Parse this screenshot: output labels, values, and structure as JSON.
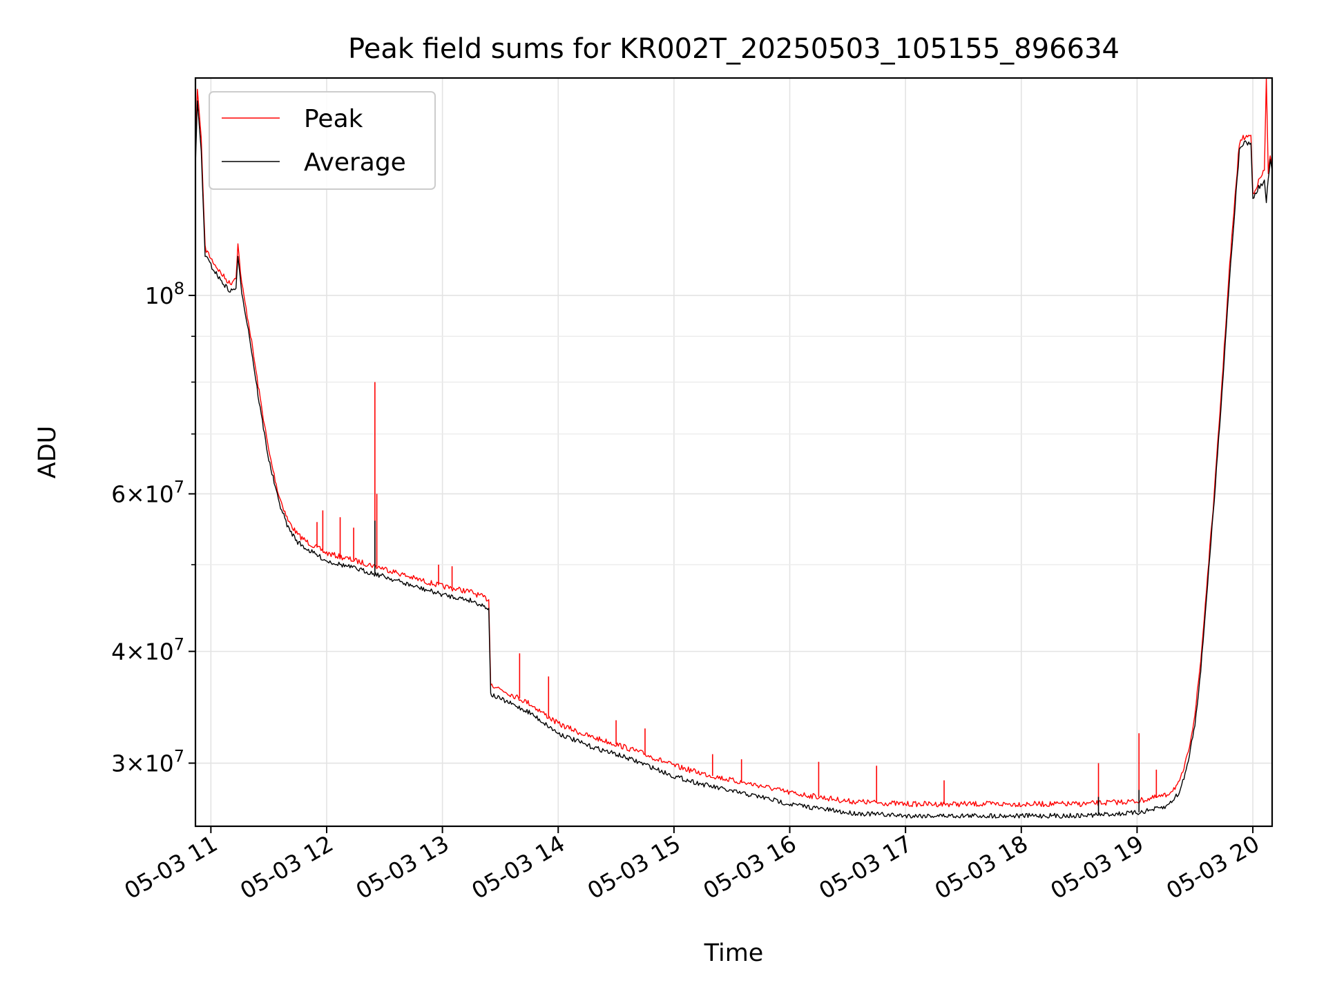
{
  "chart_data": {
    "type": "line",
    "title": "Peak field sums for KR002T_20250503_105155_896634",
    "xlabel": "Time",
    "ylabel": "ADU",
    "y_scale": "log",
    "ylim": [
      25500000,
      175000000
    ],
    "xlim": [
      "2025-05-03 10:52",
      "2025-05-03 20:10"
    ],
    "grid": true,
    "legend_position": "top-left",
    "x_tick_labels": [
      "05-03 11",
      "05-03 12",
      "05-03 13",
      "05-03 14",
      "05-03 15",
      "05-03 16",
      "05-03 17",
      "05-03 18",
      "05-03 19",
      "05-03 20"
    ],
    "x_ticks": [
      "2025-05-03 11:00",
      "2025-05-03 12:00",
      "2025-05-03 13:00",
      "2025-05-03 14:00",
      "2025-05-03 15:00",
      "2025-05-03 16:00",
      "2025-05-03 17:00",
      "2025-05-03 18:00",
      "2025-05-03 19:00",
      "2025-05-03 20:00"
    ],
    "y_major_tick_labels": [
      {
        "value": 100000000,
        "mantissa": "",
        "base": "10",
        "exp": "8"
      },
      {
        "value": 60000000,
        "mantissa": "6",
        "base": "10",
        "exp": "7"
      },
      {
        "value": 40000000,
        "mantissa": "4",
        "base": "10",
        "exp": "7"
      },
      {
        "value": 30000000,
        "mantissa": "3",
        "base": "10",
        "exp": "7"
      }
    ],
    "y_minor_ticks": [
      90000000,
      80000000,
      70000000,
      50000000
    ],
    "series": [
      {
        "name": "Peak",
        "color": "#ff0000",
        "points": [
          [
            "2025-05-03 10:52",
            145000000
          ],
          [
            "2025-05-03 10:53",
            170000000
          ],
          [
            "2025-05-03 10:55",
            150000000
          ],
          [
            "2025-05-03 10:57",
            113000000
          ],
          [
            "2025-05-03 11:00",
            110000000
          ],
          [
            "2025-05-03 11:05",
            106000000
          ],
          [
            "2025-05-03 11:10",
            103000000
          ],
          [
            "2025-05-03 11:13",
            105000000
          ],
          [
            "2025-05-03 11:14",
            114000000
          ],
          [
            "2025-05-03 11:16",
            103000000
          ],
          [
            "2025-05-03 11:20",
            92000000
          ],
          [
            "2025-05-03 11:25",
            78000000
          ],
          [
            "2025-05-03 11:30",
            67000000
          ],
          [
            "2025-05-03 11:35",
            60000000
          ],
          [
            "2025-05-03 11:40",
            56000000
          ],
          [
            "2025-05-03 11:45",
            54000000
          ],
          [
            "2025-05-03 11:50",
            53000000
          ],
          [
            "2025-05-03 12:00",
            51500000
          ],
          [
            "2025-05-03 12:15",
            50500000
          ],
          [
            "2025-05-03 12:30",
            49500000
          ],
          [
            "2025-05-03 12:45",
            48300000
          ],
          [
            "2025-05-03 13:00",
            47300000
          ],
          [
            "2025-05-03 13:15",
            46600000
          ],
          [
            "2025-05-03 13:24",
            45700000
          ],
          [
            "2025-05-03 13:25",
            36800000
          ],
          [
            "2025-05-03 13:30",
            36300000
          ],
          [
            "2025-05-03 13:45",
            35000000
          ],
          [
            "2025-05-03 14:00",
            33200000
          ],
          [
            "2025-05-03 14:15",
            32200000
          ],
          [
            "2025-05-03 14:30",
            31500000
          ],
          [
            "2025-05-03 14:45",
            30700000
          ],
          [
            "2025-05-03 15:00",
            29800000
          ],
          [
            "2025-05-03 15:15",
            29200000
          ],
          [
            "2025-05-03 15:30",
            28700000
          ],
          [
            "2025-05-03 15:45",
            28300000
          ],
          [
            "2025-05-03 16:00",
            27800000
          ],
          [
            "2025-05-03 16:15",
            27500000
          ],
          [
            "2025-05-03 16:30",
            27200000
          ],
          [
            "2025-05-03 17:00",
            27000000
          ],
          [
            "2025-05-03 17:30",
            27000000
          ],
          [
            "2025-05-03 18:00",
            27000000
          ],
          [
            "2025-05-03 18:30",
            27000000
          ],
          [
            "2025-05-03 19:00",
            27200000
          ],
          [
            "2025-05-03 19:15",
            27600000
          ],
          [
            "2025-05-03 19:22",
            28500000
          ],
          [
            "2025-05-03 19:26",
            30500000
          ],
          [
            "2025-05-03 19:30",
            34000000
          ],
          [
            "2025-05-03 19:33",
            39000000
          ],
          [
            "2025-05-03 19:36",
            47000000
          ],
          [
            "2025-05-03 19:40",
            60000000
          ],
          [
            "2025-05-03 19:44",
            80000000
          ],
          [
            "2025-05-03 19:48",
            108000000
          ],
          [
            "2025-05-03 19:53",
            148000000
          ],
          [
            "2025-05-03 19:55",
            150000000
          ],
          [
            "2025-05-03 19:59",
            151000000
          ],
          [
            "2025-05-03 20:00",
            130000000
          ],
          [
            "2025-05-03 20:03",
            134000000
          ],
          [
            "2025-05-03 20:06",
            138000000
          ],
          [
            "2025-05-03 20:07",
            175000000
          ],
          [
            "2025-05-03 20:08",
            137000000
          ],
          [
            "2025-05-03 20:09",
            143000000
          ],
          [
            "2025-05-03 20:10",
            140000000
          ]
        ],
        "spikes": [
          [
            "2025-05-03 11:55",
            55800000
          ],
          [
            "2025-05-03 11:58",
            57500000
          ],
          [
            "2025-05-03 12:07",
            56500000
          ],
          [
            "2025-05-03 12:14",
            55000000
          ],
          [
            "2025-05-03 12:25",
            80000000
          ],
          [
            "2025-05-03 12:26",
            60000000
          ],
          [
            "2025-05-03 12:58",
            50000000
          ],
          [
            "2025-05-03 13:05",
            49800000
          ],
          [
            "2025-05-03 13:40",
            39800000
          ],
          [
            "2025-05-03 13:55",
            37500000
          ],
          [
            "2025-05-03 14:30",
            33500000
          ],
          [
            "2025-05-03 14:45",
            32800000
          ],
          [
            "2025-05-03 15:20",
            30700000
          ],
          [
            "2025-05-03 15:35",
            30300000
          ],
          [
            "2025-05-03 16:15",
            30100000
          ],
          [
            "2025-05-03 16:45",
            29800000
          ],
          [
            "2025-05-03 17:20",
            28700000
          ],
          [
            "2025-05-03 18:40",
            30000000
          ],
          [
            "2025-05-03 19:01",
            32400000
          ],
          [
            "2025-05-03 19:10",
            29500000
          ]
        ]
      },
      {
        "name": "Average",
        "color": "#000000",
        "points": [
          [
            "2025-05-03 10:52",
            140000000
          ],
          [
            "2025-05-03 10:53",
            165000000
          ],
          [
            "2025-05-03 10:55",
            145000000
          ],
          [
            "2025-05-03 10:57",
            111000000
          ],
          [
            "2025-05-03 11:00",
            108000000
          ],
          [
            "2025-05-03 11:05",
            104000000
          ],
          [
            "2025-05-03 11:10",
            101000000
          ],
          [
            "2025-05-03 11:13",
            102000000
          ],
          [
            "2025-05-03 11:14",
            110000000
          ],
          [
            "2025-05-03 11:16",
            101000000
          ],
          [
            "2025-05-03 11:20",
            90000000
          ],
          [
            "2025-05-03 11:25",
            76000000
          ],
          [
            "2025-05-03 11:30",
            65500000
          ],
          [
            "2025-05-03 11:35",
            59000000
          ],
          [
            "2025-05-03 11:40",
            55000000
          ],
          [
            "2025-05-03 11:45",
            53000000
          ],
          [
            "2025-05-03 11:50",
            52000000
          ],
          [
            "2025-05-03 12:00",
            50500000
          ],
          [
            "2025-05-03 12:15",
            49500000
          ],
          [
            "2025-05-03 12:30",
            48500000
          ],
          [
            "2025-05-03 12:45",
            47300000
          ],
          [
            "2025-05-03 13:00",
            46300000
          ],
          [
            "2025-05-03 13:15",
            45600000
          ],
          [
            "2025-05-03 13:24",
            44700000
          ],
          [
            "2025-05-03 13:25",
            35800000
          ],
          [
            "2025-05-03 13:30",
            35400000
          ],
          [
            "2025-05-03 13:45",
            34200000
          ],
          [
            "2025-05-03 14:00",
            32400000
          ],
          [
            "2025-05-03 14:15",
            31400000
          ],
          [
            "2025-05-03 14:30",
            30700000
          ],
          [
            "2025-05-03 14:45",
            29900000
          ],
          [
            "2025-05-03 15:00",
            29000000
          ],
          [
            "2025-05-03 15:15",
            28400000
          ],
          [
            "2025-05-03 15:30",
            27900000
          ],
          [
            "2025-05-03 15:45",
            27500000
          ],
          [
            "2025-05-03 16:00",
            27000000
          ],
          [
            "2025-05-03 16:15",
            26700000
          ],
          [
            "2025-05-03 16:30",
            26400000
          ],
          [
            "2025-05-03 17:00",
            26200000
          ],
          [
            "2025-05-03 17:30",
            26200000
          ],
          [
            "2025-05-03 18:00",
            26200000
          ],
          [
            "2025-05-03 18:30",
            26200000
          ],
          [
            "2025-05-03 19:00",
            26400000
          ],
          [
            "2025-05-03 19:15",
            26800000
          ],
          [
            "2025-05-03 19:22",
            27800000
          ],
          [
            "2025-05-03 19:26",
            29800000
          ],
          [
            "2025-05-03 19:30",
            33200000
          ],
          [
            "2025-05-03 19:33",
            38000000
          ],
          [
            "2025-05-03 19:36",
            46000000
          ],
          [
            "2025-05-03 19:40",
            59000000
          ],
          [
            "2025-05-03 19:44",
            78000000
          ],
          [
            "2025-05-03 19:48",
            105000000
          ],
          [
            "2025-05-03 19:53",
            145000000
          ],
          [
            "2025-05-03 19:55",
            148000000
          ],
          [
            "2025-05-03 19:59",
            148000000
          ],
          [
            "2025-05-03 20:00",
            128000000
          ],
          [
            "2025-05-03 20:03",
            132000000
          ],
          [
            "2025-05-03 20:06",
            134000000
          ],
          [
            "2025-05-03 20:07",
            127000000
          ],
          [
            "2025-05-03 20:08",
            135000000
          ],
          [
            "2025-05-03 20:09",
            141000000
          ],
          [
            "2025-05-03 20:10",
            138000000
          ]
        ],
        "spikes": [
          [
            "2025-05-03 12:25",
            56000000
          ],
          [
            "2025-05-03 18:40",
            27500000
          ],
          [
            "2025-05-03 19:01",
            28000000
          ]
        ]
      }
    ]
  }
}
